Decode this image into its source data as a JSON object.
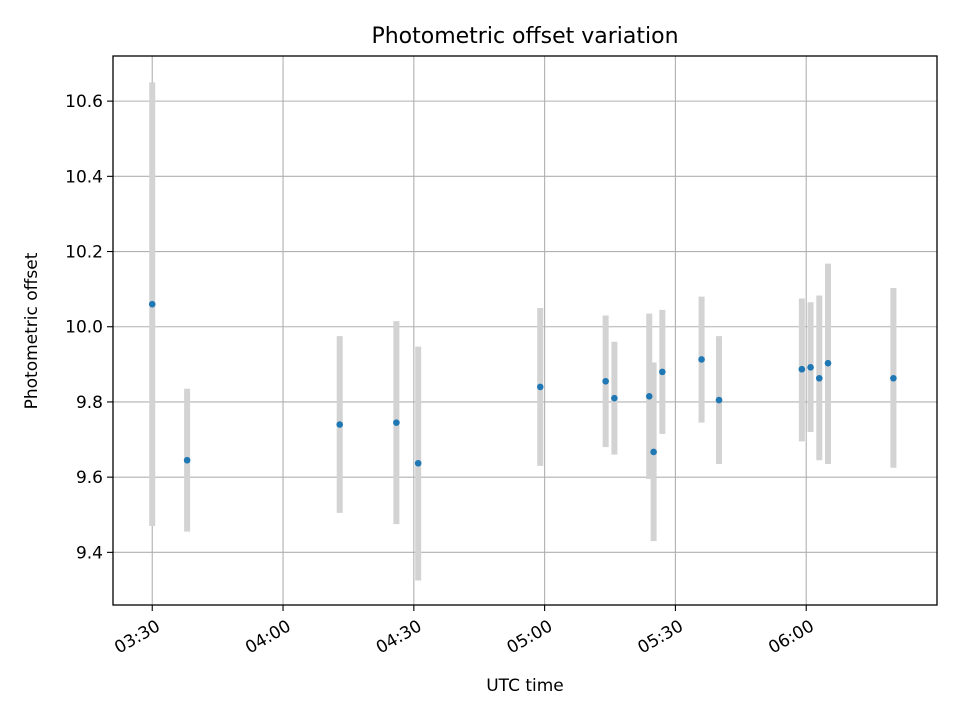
{
  "chart_data": {
    "type": "scatter",
    "title": "Photometric offset variation",
    "xlabel": "UTC time",
    "ylabel": "Photometric offset",
    "x_is_time": true,
    "xlim": [
      "03:21",
      "06:30"
    ],
    "ylim": [
      9.26,
      10.72
    ],
    "x_ticks": [
      "03:30",
      "04:00",
      "04:30",
      "05:00",
      "05:30",
      "06:00"
    ],
    "y_ticks": [
      "9.4",
      "9.6",
      "9.8",
      "10.0",
      "10.2",
      "10.4",
      "10.6"
    ],
    "grid": true,
    "series": [
      {
        "marker_color": "#1f77b4",
        "errorbar_color": "#d3d3d3",
        "points": [
          {
            "x": "03:30",
            "y": 10.06,
            "ylow": 9.47,
            "yhigh": 10.65
          },
          {
            "x": "03:38",
            "y": 9.645,
            "ylow": 9.455,
            "yhigh": 9.835
          },
          {
            "x": "04:13",
            "y": 9.74,
            "ylow": 9.505,
            "yhigh": 9.975
          },
          {
            "x": "04:26",
            "y": 9.745,
            "ylow": 9.475,
            "yhigh": 10.015
          },
          {
            "x": "04:31",
            "y": 9.637,
            "ylow": 9.325,
            "yhigh": 9.947
          },
          {
            "x": "04:59",
            "y": 9.84,
            "ylow": 9.63,
            "yhigh": 10.05
          },
          {
            "x": "05:14",
            "y": 9.855,
            "ylow": 9.68,
            "yhigh": 10.03
          },
          {
            "x": "05:16",
            "y": 9.81,
            "ylow": 9.66,
            "yhigh": 9.96
          },
          {
            "x": "05:24",
            "y": 9.815,
            "ylow": 9.595,
            "yhigh": 10.035
          },
          {
            "x": "05:25",
            "y": 9.667,
            "ylow": 9.43,
            "yhigh": 9.905
          },
          {
            "x": "05:27",
            "y": 9.88,
            "ylow": 9.715,
            "yhigh": 10.045
          },
          {
            "x": "05:36",
            "y": 9.913,
            "ylow": 9.745,
            "yhigh": 10.08
          },
          {
            "x": "05:40",
            "y": 9.805,
            "ylow": 9.635,
            "yhigh": 9.975
          },
          {
            "x": "05:59",
            "y": 9.887,
            "ylow": 9.695,
            "yhigh": 10.075
          },
          {
            "x": "06:01",
            "y": 9.892,
            "ylow": 9.72,
            "yhigh": 10.065
          },
          {
            "x": "06:03",
            "y": 9.863,
            "ylow": 9.645,
            "yhigh": 10.083
          },
          {
            "x": "06:05",
            "y": 9.903,
            "ylow": 9.635,
            "yhigh": 10.168
          },
          {
            "x": "06:20",
            "y": 9.863,
            "ylow": 9.625,
            "yhigh": 10.103
          }
        ]
      }
    ]
  }
}
